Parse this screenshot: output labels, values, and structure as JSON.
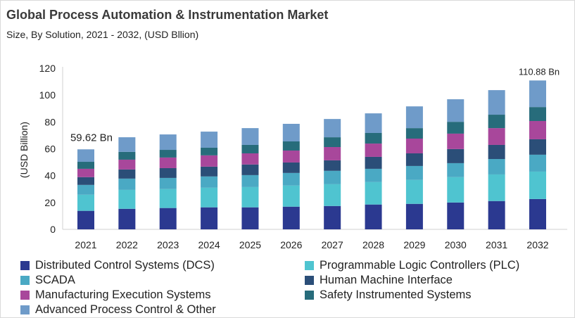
{
  "title": "Global Process Automation & Instrumentation Market",
  "subtitle": "Size, By Solution, 2021 - 2032, (USD Bllion)",
  "chart_data": {
    "type": "bar",
    "stacked": true,
    "title": "Global Process Automation & Instrumentation Market",
    "xlabel": "",
    "ylabel": "(USD Billion)",
    "ylim": [
      0,
      120
    ],
    "yticks": [
      0,
      20,
      40,
      60,
      80,
      100,
      120
    ],
    "grid": false,
    "legend_position": "bottom",
    "categories": [
      "2021",
      "2022",
      "2023",
      "2024",
      "2025",
      "2026",
      "2027",
      "2028",
      "2029",
      "2030",
      "2031",
      "2032"
    ],
    "series": [
      {
        "name": "Distributed Control Systems (DCS)",
        "color": "#2b3990",
        "values": [
          13.8,
          15.3,
          15.9,
          16.4,
          16.4,
          16.9,
          17.4,
          18.5,
          19.0,
          20.0,
          21.1,
          22.6
        ]
      },
      {
        "name": "Programmable Logic Controllers (PLC)",
        "color": "#4fc4d0",
        "values": [
          12.0,
          14.1,
          14.1,
          14.6,
          15.1,
          15.7,
          16.2,
          16.7,
          17.8,
          18.9,
          19.8,
          20.4
        ]
      },
      {
        "name": "SCADA",
        "color": "#4aa9c4",
        "values": [
          7.3,
          8.4,
          8.3,
          8.4,
          8.9,
          9.4,
          10.0,
          9.9,
          10.4,
          10.4,
          11.5,
          12.6
        ]
      },
      {
        "name": "Human Machine Interface",
        "color": "#2b4e78",
        "values": [
          5.8,
          6.8,
          7.3,
          7.3,
          7.9,
          7.8,
          7.8,
          8.9,
          9.4,
          10.5,
          10.5,
          11.5
        ]
      },
      {
        "name": "Manufacturing Execution Systems",
        "color": "#a8479b",
        "values": [
          6.2,
          7.3,
          7.9,
          8.4,
          8.3,
          8.9,
          9.9,
          9.9,
          11.0,
          11.5,
          12.5,
          13.6
        ]
      },
      {
        "name": "Safety Instrumented Systems",
        "color": "#276c7b",
        "values": [
          5.2,
          5.8,
          5.7,
          5.7,
          6.3,
          6.8,
          7.3,
          7.9,
          7.8,
          8.8,
          10.0,
          10.4
        ]
      },
      {
        "name": "Advanced Process Control & Other",
        "color": "#6f9bc9",
        "values": [
          9.3,
          10.9,
          11.5,
          12.0,
          12.5,
          13.1,
          13.6,
          14.6,
          16.2,
          16.8,
          18.3,
          19.8
        ]
      }
    ],
    "annotations": [
      {
        "category": "2021",
        "text": "59.62 Bn"
      },
      {
        "category": "2032",
        "text": "110.88 Bn"
      }
    ]
  }
}
